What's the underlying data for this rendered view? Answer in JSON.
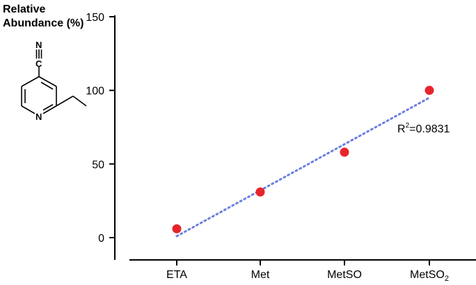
{
  "chart_data": {
    "type": "scatter",
    "ylabel_line1": "Relative",
    "ylabel_line2": "Abundance (%)",
    "ylim": [
      0,
      150
    ],
    "yticks": [
      "0",
      "50",
      "100",
      "150"
    ],
    "categories": [
      "ETA",
      "Met",
      "MetSO",
      "MetSO2"
    ],
    "category_labels": [
      {
        "main": "ETA",
        "sub": ""
      },
      {
        "main": "Met",
        "sub": ""
      },
      {
        "main": "MetSO",
        "sub": ""
      },
      {
        "main": "MetSO",
        "sub": "2"
      }
    ],
    "series": [
      {
        "values": [
          6,
          31,
          58,
          100
        ],
        "color": "#e8242b"
      }
    ],
    "trendline": {
      "style": "dotted",
      "color": "#6b7fe0",
      "start_value": 1,
      "end_value": 95,
      "label_main": "R",
      "label_sup": "2",
      "label_rest": "=0.9831"
    },
    "molecule_atoms": {
      "nitrile_n": "N",
      "nitrile_c": "C",
      "ring_n": "N"
    },
    "grid": false
  }
}
